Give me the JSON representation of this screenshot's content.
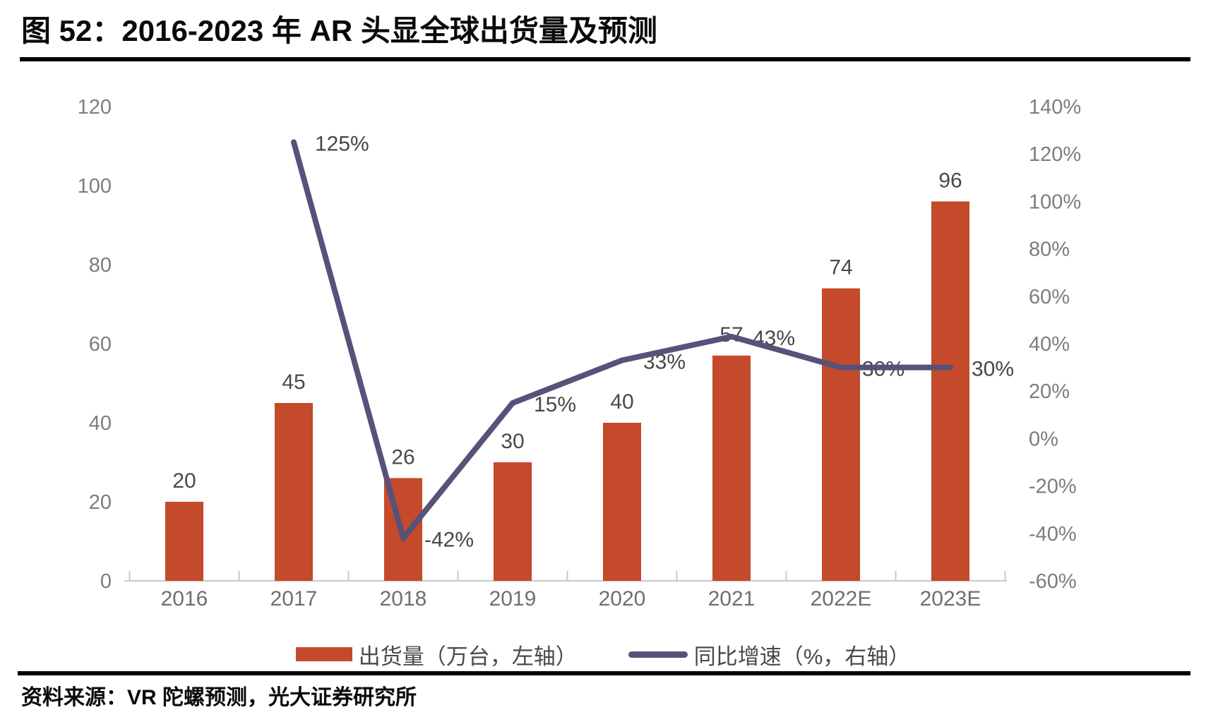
{
  "header": {
    "title": "图 52：2016-2023 年 AR 头显全球出货量及预测"
  },
  "chart_data": {
    "type": "combo",
    "title": "图 52：2016-2023 年 AR 头显全球出货量及预测",
    "categories": [
      "2016",
      "2017",
      "2018",
      "2019",
      "2020",
      "2021",
      "2022E",
      "2023E"
    ],
    "series": [
      {
        "name": "出货量（万台，左轴）",
        "type": "bar",
        "axis": "left",
        "color": "#C5492B",
        "values": [
          20,
          45,
          26,
          30,
          40,
          57,
          74,
          96
        ]
      },
      {
        "name": "同比增速（%，右轴）",
        "type": "line",
        "axis": "right",
        "color": "#565279",
        "values": [
          null,
          125,
          -42,
          15,
          33,
          43,
          30,
          30
        ],
        "point_labels": [
          null,
          "125%",
          "-42%",
          "15%",
          "33%",
          "43%",
          "30%",
          "30%"
        ]
      }
    ],
    "left_axis": {
      "range": [
        0,
        120
      ],
      "ticks": [
        {
          "v": 0,
          "label": "0"
        },
        {
          "v": 20,
          "label": "20"
        },
        {
          "v": 40,
          "label": "40"
        },
        {
          "v": 60,
          "label": "60"
        },
        {
          "v": 80,
          "label": "80"
        },
        {
          "v": 100,
          "label": "100"
        },
        {
          "v": 120,
          "label": "120"
        }
      ]
    },
    "right_axis": {
      "range": [
        -60,
        140
      ],
      "ticks": [
        {
          "v": -60,
          "label": "-60%"
        },
        {
          "v": -40,
          "label": "-40%"
        },
        {
          "v": -20,
          "label": "-20%"
        },
        {
          "v": 0,
          "label": "0%"
        },
        {
          "v": 20,
          "label": "20%"
        },
        {
          "v": 40,
          "label": "40%"
        },
        {
          "v": 60,
          "label": "60%"
        },
        {
          "v": 80,
          "label": "80%"
        },
        {
          "v": 100,
          "label": "100%"
        },
        {
          "v": 120,
          "label": "120%"
        },
        {
          "v": 140,
          "label": "140%"
        }
      ]
    },
    "grid": false,
    "legend_position": "bottom"
  },
  "legend": {
    "items": [
      {
        "label": "出货量（万台，左轴）",
        "swatch": "bar"
      },
      {
        "label": "同比增速（%，右轴）",
        "swatch": "line"
      }
    ]
  },
  "footer": {
    "source": "资料来源：VR 陀螺预测，光大证券研究所"
  }
}
